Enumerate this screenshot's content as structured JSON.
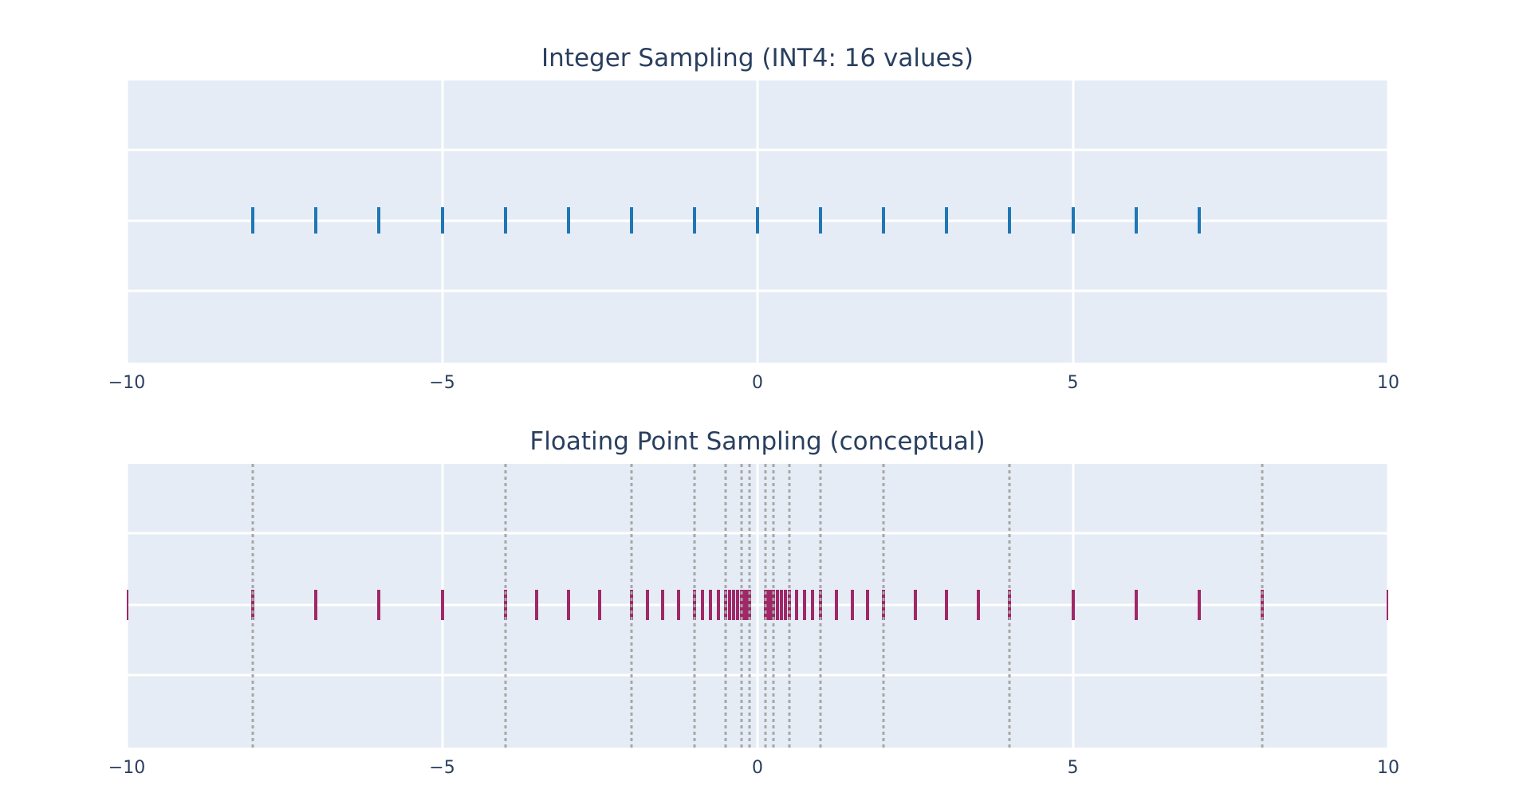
{
  "figure": {
    "background_color": "#ffffff",
    "panel_background_color": "#e6ecf5",
    "grid_color": "#ffffff",
    "text_color": "#2a3f5f"
  },
  "chart_data": [
    {
      "type": "scatter",
      "subtype": "eventplot-vertical-ticks",
      "title": "Integer Sampling (INT4: 16 values)",
      "values": [
        -8,
        -7,
        -6,
        -5,
        -4,
        -3,
        -2,
        -1,
        0,
        1,
        2,
        3,
        4,
        5,
        6,
        7
      ],
      "xlim": [
        -10,
        10
      ],
      "xticks": [
        -10,
        -5,
        0,
        5,
        10
      ],
      "xtick_labels": [
        "−10",
        "−5",
        "0",
        "5",
        "10"
      ],
      "grid": true,
      "legend": false,
      "marker_color": "#1f77b4"
    },
    {
      "type": "scatter",
      "subtype": "eventplot-vertical-ticks",
      "title": "Floating Point Sampling (conceptual)",
      "values": [
        -10,
        -8,
        -7,
        -6,
        -5,
        -4,
        -3.5,
        -3,
        -2.5,
        -2,
        -1.75,
        -1.5,
        -1.25,
        -1,
        -0.875,
        -0.75,
        -0.625,
        -0.5,
        -0.4375,
        -0.375,
        -0.3125,
        -0.25,
        -0.21875,
        -0.1875,
        -0.15625,
        -0.125,
        0.125,
        0.15625,
        0.1875,
        0.21875,
        0.25,
        0.3125,
        0.375,
        0.4375,
        0.5,
        0.625,
        0.75,
        0.875,
        1,
        1.25,
        1.5,
        1.75,
        2,
        2.5,
        3,
        3.5,
        4,
        5,
        6,
        7,
        8,
        10
      ],
      "reference_lines": [
        -8,
        -4,
        -2,
        -1,
        -0.5,
        -0.25,
        -0.125,
        0.125,
        0.25,
        0.5,
        1,
        2,
        4,
        8
      ],
      "reference_line_color": "#a7a7a7",
      "reference_line_style": "dotted",
      "xlim": [
        -10,
        10
      ],
      "xticks": [
        -10,
        -5,
        0,
        5,
        10
      ],
      "xtick_labels": [
        "−10",
        "−5",
        "0",
        "5",
        "10"
      ],
      "grid": true,
      "legend": false,
      "marker_color": "#a02868"
    }
  ]
}
